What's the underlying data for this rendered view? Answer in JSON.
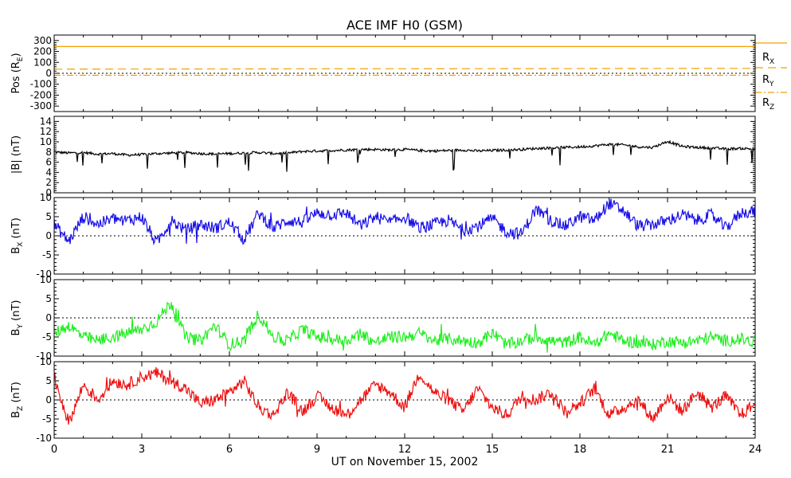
{
  "chart_data": {
    "type": "line",
    "title": "ACE IMF H0 (GSM)",
    "xlabel": "UT on November 15, 2002",
    "xlim": [
      0,
      24
    ],
    "xticks": [
      0,
      3,
      6,
      9,
      12,
      15,
      18,
      21,
      24
    ],
    "xtick_labels": [
      "0",
      "3",
      "6",
      "9",
      "12",
      "15",
      "18",
      "21",
      "24"
    ],
    "panels": [
      {
        "id": "pos",
        "ylabel_main": "Pos (R",
        "ylabel_sub": "E",
        "ylabel_tail": ")",
        "ylim": [
          -350,
          350
        ],
        "yticks": [
          300,
          200,
          100,
          0,
          -100,
          -200,
          -300
        ],
        "ytick_labels": [
          "300",
          "200",
          "100",
          "0",
          "-100",
          "-200",
          "-300"
        ],
        "zero_line": true,
        "series": [
          {
            "name": "R",
            "sub": "X",
            "color": "#f5a000",
            "dash": "solid",
            "x": [
              0,
              24
            ],
            "values": [
              245,
              245
            ]
          },
          {
            "name": "R",
            "sub": "Y",
            "color": "#f5a000",
            "dash": "long",
            "x": [
              0,
              24
            ],
            "values": [
              38,
              45
            ]
          },
          {
            "name": "R",
            "sub": "Z",
            "color": "#f5a000",
            "dash": "dashdot",
            "x": [
              0,
              24
            ],
            "values": [
              -18,
              -18
            ]
          }
        ]
      },
      {
        "id": "bmag",
        "ylabel_main": "|B| (nT)",
        "ylim": [
          0,
          15
        ],
        "yticks": [
          0,
          2,
          4,
          6,
          8,
          10,
          12,
          14
        ],
        "ytick_labels": [
          "0",
          "2",
          "4",
          "6",
          "8",
          "10",
          "12",
          "14"
        ],
        "zero_line": false,
        "series": [
          {
            "name": "|B|",
            "color": "#000000",
            "x": [
              0,
              0.5,
              1,
              1.5,
              2,
              2.5,
              3,
              3.5,
              4,
              4.5,
              5,
              5.5,
              6,
              6.5,
              7,
              7.5,
              8,
              8.5,
              9,
              9.5,
              10,
              10.5,
              11,
              11.5,
              12,
              12.5,
              13,
              13.5,
              14,
              14.5,
              15,
              15.5,
              16,
              16.5,
              17,
              17.5,
              18,
              18.5,
              19,
              19.5,
              20,
              20.5,
              21,
              21.5,
              22,
              22.5,
              23,
              23.5,
              24
            ],
            "values": [
              8.0,
              7.8,
              7.9,
              7.6,
              7.7,
              7.4,
              7.5,
              7.7,
              7.8,
              7.9,
              7.7,
              7.6,
              7.7,
              7.8,
              7.9,
              7.7,
              7.8,
              8.1,
              8.2,
              8.3,
              8.4,
              8.5,
              8.5,
              8.4,
              8.5,
              8.3,
              8.2,
              8.3,
              8.4,
              8.2,
              8.3,
              8.4,
              8.5,
              8.7,
              8.8,
              8.9,
              9.0,
              9.2,
              9.5,
              9.4,
              9.0,
              8.9,
              10.1,
              9.1,
              8.9,
              8.8,
              8.6,
              8.7,
              8.6
            ]
          }
        ]
      },
      {
        "id": "bx",
        "ylabel_main": "B",
        "ylabel_sub": "X",
        "ylabel_tail": " (nT)",
        "ylim": [
          -10,
          10
        ],
        "yticks": [
          10,
          5,
          0,
          -5,
          -10
        ],
        "ytick_labels": [
          "10",
          "5",
          "0",
          "-5",
          "-10"
        ],
        "zero_line": true,
        "series": [
          {
            "name": "B_X",
            "color": "#1a10e8",
            "x": [
              0,
              0.5,
              1,
              1.5,
              2,
              2.5,
              3,
              3.5,
              4,
              4.5,
              5,
              5.5,
              6,
              6.5,
              7,
              7.5,
              8,
              8.5,
              9,
              9.5,
              10,
              10.5,
              11,
              11.5,
              12,
              12.5,
              13,
              13.5,
              14,
              14.5,
              15,
              15.5,
              16,
              16.5,
              17,
              17.5,
              18,
              18.5,
              19,
              19.5,
              20,
              20.5,
              21,
              21.5,
              22,
              22.5,
              23,
              23.5,
              24
            ],
            "values": [
              3.0,
              -1.5,
              5.0,
              3.0,
              4.5,
              4.0,
              5.0,
              -2.0,
              4.0,
              1.5,
              3.0,
              2.0,
              3.5,
              -1.0,
              6.0,
              2.0,
              4.0,
              3.5,
              6.0,
              5.5,
              6.0,
              2.5,
              5.0,
              3.5,
              5.0,
              2.0,
              3.0,
              4.0,
              1.5,
              2.5,
              4.5,
              1.0,
              0.5,
              7.0,
              4.0,
              2.5,
              5.0,
              4.0,
              8.5,
              6.5,
              2.5,
              3.0,
              4.0,
              5.5,
              4.0,
              5.5,
              2.0,
              6.0,
              6.5
            ]
          }
        ]
      },
      {
        "id": "by",
        "ylabel_main": "B",
        "ylabel_sub": "Y",
        "ylabel_tail": " (nT)",
        "ylim": [
          -10,
          10
        ],
        "yticks": [
          10,
          5,
          0,
          -5,
          -10
        ],
        "ytick_labels": [
          "10",
          "5",
          "0",
          "-5",
          "-10"
        ],
        "zero_line": true,
        "series": [
          {
            "name": "B_Y",
            "color": "#22ee22",
            "x": [
              0,
              0.5,
              1,
              1.5,
              2,
              2.5,
              3,
              3.5,
              4,
              4.5,
              5,
              5.5,
              6,
              6.5,
              7,
              7.5,
              8,
              8.5,
              9,
              9.5,
              10,
              10.5,
              11,
              11.5,
              12,
              12.5,
              13,
              13.5,
              14,
              14.5,
              15,
              15.5,
              16,
              16.5,
              17,
              17.5,
              18,
              18.5,
              19,
              19.5,
              20,
              20.5,
              21,
              21.5,
              22,
              22.5,
              23,
              23.5,
              24
            ],
            "values": [
              -4.0,
              -2.0,
              -5.0,
              -6.0,
              -5.0,
              -4.0,
              -3.0,
              -1.0,
              4.0,
              -5.0,
              -6.0,
              -2.0,
              -7.0,
              -6.0,
              1.0,
              -5.0,
              -6.0,
              -3.0,
              -5.0,
              -5.5,
              -6.0,
              -4.0,
              -6.5,
              -5.0,
              -5.0,
              -4.0,
              -6.0,
              -5.5,
              -6.0,
              -6.5,
              -4.0,
              -7.0,
              -6.0,
              -5.0,
              -6.0,
              -6.5,
              -5.0,
              -7.0,
              -4.0,
              -6.0,
              -6.5,
              -7.0,
              -6.0,
              -6.5,
              -6.0,
              -5.0,
              -6.0,
              -5.5,
              -6.5
            ]
          }
        ]
      },
      {
        "id": "bz",
        "ylabel_main": "B",
        "ylabel_sub": "Z",
        "ylabel_tail": " (nT)",
        "ylim": [
          -10,
          10
        ],
        "yticks": [
          10,
          5,
          0,
          -5,
          -10
        ],
        "ytick_labels": [
          "10",
          "5",
          "0",
          "-5",
          "-10"
        ],
        "zero_line": true,
        "series": [
          {
            "name": "B_Z",
            "color": "#ee1111",
            "x": [
              0,
              0.5,
              1,
              1.5,
              2,
              2.5,
              3,
              3.5,
              4,
              4.5,
              5,
              5.5,
              6,
              6.5,
              7,
              7.5,
              8,
              8.5,
              9,
              9.5,
              10,
              10.5,
              11,
              11.5,
              12,
              12.5,
              13,
              13.5,
              14,
              14.5,
              15,
              15.5,
              16,
              16.5,
              17,
              17.5,
              18,
              18.5,
              19,
              19.5,
              20,
              20.5,
              21,
              21.5,
              22,
              22.5,
              23,
              23.5,
              24
            ],
            "values": [
              6.0,
              -6.0,
              4.0,
              0.0,
              5.0,
              4.0,
              6.0,
              7.0,
              5.0,
              3.0,
              -1.0,
              0.0,
              2.0,
              5.0,
              -2.0,
              -4.0,
              2.0,
              -3.0,
              1.0,
              -2.0,
              -4.0,
              0.0,
              4.0,
              2.0,
              -2.0,
              7.0,
              2.0,
              0.0,
              -3.0,
              3.0,
              -2.0,
              -4.0,
              1.0,
              0.0,
              2.0,
              -3.0,
              -1.0,
              3.0,
              -4.0,
              -2.0,
              0.0,
              -5.0,
              1.0,
              -3.0,
              2.0,
              -2.0,
              1.0,
              -4.0,
              -1.0
            ]
          }
        ]
      }
    ]
  }
}
